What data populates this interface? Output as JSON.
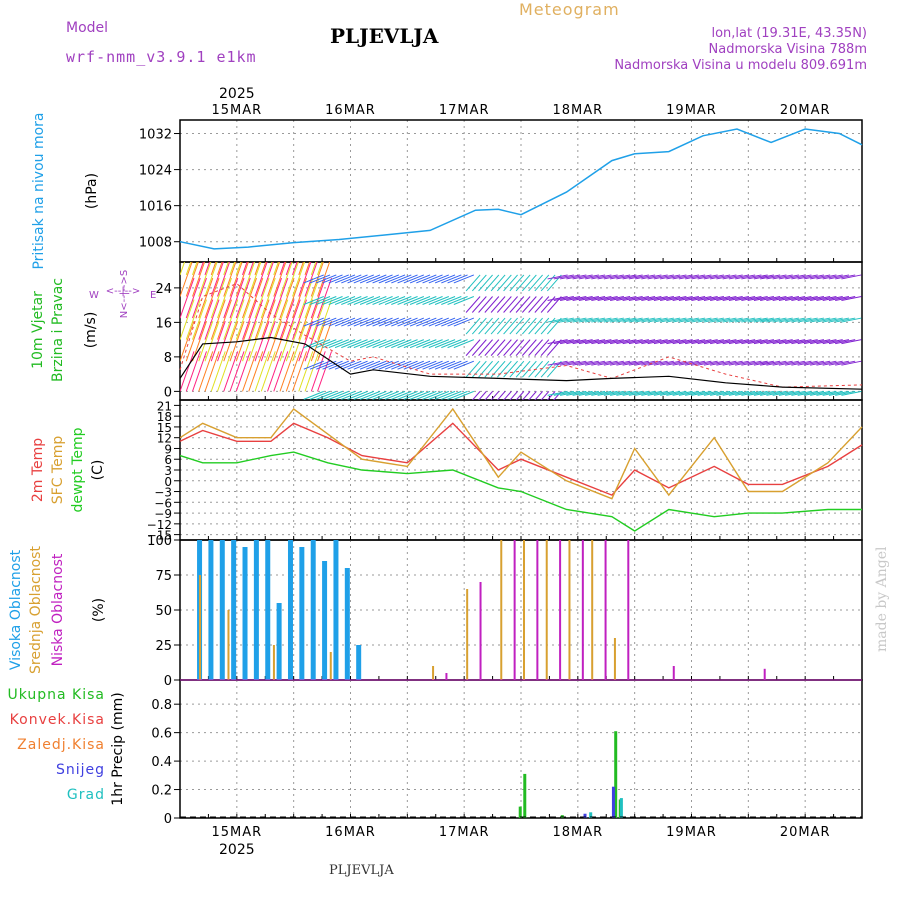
{
  "header": {
    "model_label": "Model",
    "model_name": "wrf-nmm_v3.9.1 e1km",
    "station": "PLJEVLJA",
    "product": "Meteogram",
    "lonlat": "lon,lat (19.31E, 43.35N)",
    "elevation": "Nadmorska Visina 788m",
    "model_elevation": "Nadmorska Visina u modelu 809.691m",
    "footer_station": "PLJEVLJA",
    "credit": "made by Angel"
  },
  "colors": {
    "pressure": "#1fa0e8",
    "wind_label": "#22bb22",
    "temp2m": "#e84040",
    "sfc": "#d8a030",
    "dewpt": "#22cc22",
    "high_cloud": "#1fa0e8",
    "mid_cloud": "#d8a030",
    "low_cloud": "#c020c0",
    "precip_total": "#22bb22",
    "precip_conv": "#e84040",
    "precip_frozen": "#f08030",
    "snow": "#4040e0",
    "graupel": "#20c0c0",
    "model_label": "#a040c0",
    "product": "#e0b060",
    "info": "#a040c0"
  },
  "labels": {
    "pressure": [
      "Pritisak na nivou mora",
      "(hPa)"
    ],
    "wind": [
      "10m Vjetar",
      "Brzina i Pravac",
      "(m/s)"
    ],
    "compass": [
      "W",
      "E",
      "N",
      "S"
    ],
    "temperature": [
      "2m Temp",
      "SFC Temp",
      "dewpt Temp",
      "(C)"
    ],
    "cloud": [
      "Visoka Oblacnost",
      "Srednja Oblacnost",
      "Niska Oblacnost",
      "(%)"
    ],
    "precip_legend": [
      "Ukupna Kisa",
      "Konvek.Kisa",
      "Zaledj.Kisa",
      "Snijeg",
      "Grad"
    ],
    "precip_axis": "1hr Precip (mm)"
  },
  "chart_data": [
    {
      "type": "line",
      "panel": "pressure",
      "ylabel": "(hPa)",
      "yticks": [
        1008,
        1016,
        1024,
        1032
      ],
      "ylim": [
        1003.5,
        1035
      ],
      "x_range_days": [
        "2025-03-14T12:00",
        "2025-03-20T12:00"
      ],
      "x": [
        0,
        0.3,
        0.6,
        1.0,
        1.4,
        1.8,
        2.2,
        2.6,
        2.8,
        3.0,
        3.4,
        3.8,
        4.0,
        4.3,
        4.6,
        4.9,
        5.2,
        5.5,
        5.8,
        6.0
      ],
      "values": [
        1008,
        1006.4,
        1006.8,
        1007.8,
        1008.5,
        1009.5,
        1010.5,
        1015,
        1015.2,
        1014,
        1019,
        1026,
        1027.5,
        1028,
        1031.5,
        1033,
        1030,
        1033,
        1032,
        1029.5
      ]
    },
    {
      "type": "line",
      "panel": "wind",
      "ylabel": "(m/s)",
      "yticks": [
        0,
        8,
        16,
        24
      ],
      "ylim": [
        -2,
        30
      ],
      "x": [
        0,
        0.2,
        0.5,
        0.8,
        1.1,
        1.5,
        1.7,
        2.2,
        2.8,
        3.4,
        3.8,
        4.3,
        4.8,
        5.3,
        6.0
      ],
      "values": [
        3,
        11,
        11.5,
        12.5,
        11,
        4,
        5,
        3.5,
        3,
        2.5,
        3,
        3.5,
        2,
        1,
        0.5
      ],
      "gust_values": [
        5,
        22,
        25,
        18,
        13,
        7,
        8,
        4,
        4,
        6,
        3,
        8,
        4,
        1,
        1.5
      ]
    },
    {
      "type": "line",
      "panel": "temperature",
      "ylabel": "(C)",
      "yticks": [
        -15,
        -12,
        -9,
        -6,
        -3,
        0,
        3,
        6,
        9,
        12,
        15,
        18,
        21
      ],
      "ylim": [
        -16.5,
        22.5
      ],
      "x": [
        0,
        0.2,
        0.5,
        0.8,
        1.0,
        1.3,
        1.6,
        2.0,
        2.4,
        2.8,
        3.0,
        3.4,
        3.8,
        4.0,
        4.3,
        4.7,
        5.0,
        5.3,
        5.7,
        6.0
      ],
      "series": [
        {
          "name": "2m Temp",
          "values": [
            11,
            14,
            11,
            11,
            16,
            12,
            7,
            5,
            16,
            3,
            6,
            1,
            -4,
            3,
            -2,
            4,
            -1,
            -1,
            4,
            10
          ]
        },
        {
          "name": "SFC Temp",
          "values": [
            12,
            16,
            12,
            12,
            20,
            13,
            6,
            4,
            20,
            1,
            8,
            0,
            -5,
            9,
            -4,
            12,
            -3,
            -3,
            5,
            15
          ]
        },
        {
          "name": "dewpt Temp",
          "values": [
            7,
            5,
            5,
            7,
            8,
            5,
            3,
            2,
            3,
            -2,
            -3,
            -8,
            -10,
            -14,
            -8,
            -10,
            -9,
            -9,
            -8,
            -8
          ]
        }
      ]
    },
    {
      "type": "bar",
      "panel": "cloud",
      "ylabel": "(%)",
      "yticks": [
        0,
        25,
        50,
        75,
        100
      ],
      "ylim": [
        0,
        100
      ],
      "series": [
        {
          "name": "Visoka Oblacnost",
          "x": [
            0.15,
            0.25,
            0.35,
            0.45,
            0.55,
            0.65,
            0.75,
            0.85,
            0.95,
            1.05,
            1.15,
            1.25,
            1.35,
            1.45,
            1.55
          ],
          "values": [
            100,
            100,
            100,
            100,
            95,
            100,
            100,
            55,
            100,
            95,
            100,
            85,
            100,
            80,
            25
          ]
        },
        {
          "name": "Srednja Oblacnost",
          "x": [
            0.15,
            0.4,
            0.8,
            1.3,
            2.2,
            2.5,
            2.8,
            3.0,
            3.2,
            3.4,
            3.6,
            3.8
          ],
          "values": [
            75,
            50,
            25,
            20,
            10,
            65,
            100,
            100,
            100,
            100,
            100,
            30
          ]
        },
        {
          "name": "Niska Oblacnost",
          "x": [
            2.3,
            2.6,
            2.9,
            3.1,
            3.3,
            3.5,
            3.7,
            3.9,
            4.3,
            5.1
          ],
          "values": [
            5,
            70,
            100,
            100,
            100,
            100,
            100,
            100,
            10,
            8
          ]
        }
      ]
    },
    {
      "type": "bar",
      "panel": "precip",
      "ylabel": "1hr Precip (mm)",
      "yticks": [
        0,
        0.2,
        0.4,
        0.6,
        0.8
      ],
      "ylim": [
        0,
        0.97
      ],
      "series": [
        {
          "name": "Ukupna Kisa",
          "x": [
            2.98,
            3.02,
            3.35,
            3.82,
            3.86
          ],
          "values": [
            0.08,
            0.31,
            0.02,
            0.61,
            0.13
          ]
        },
        {
          "name": "Snijeg",
          "x": [
            3.55,
            3.8
          ],
          "values": [
            0.03,
            0.22
          ]
        },
        {
          "name": "Grad",
          "x": [
            3.6,
            3.87
          ],
          "values": [
            0.04,
            0.14
          ]
        }
      ]
    }
  ],
  "axis": {
    "year": "2025",
    "dates": [
      "15MAR",
      "16MAR",
      "17MAR",
      "18MAR",
      "19MAR",
      "20MAR"
    ]
  }
}
